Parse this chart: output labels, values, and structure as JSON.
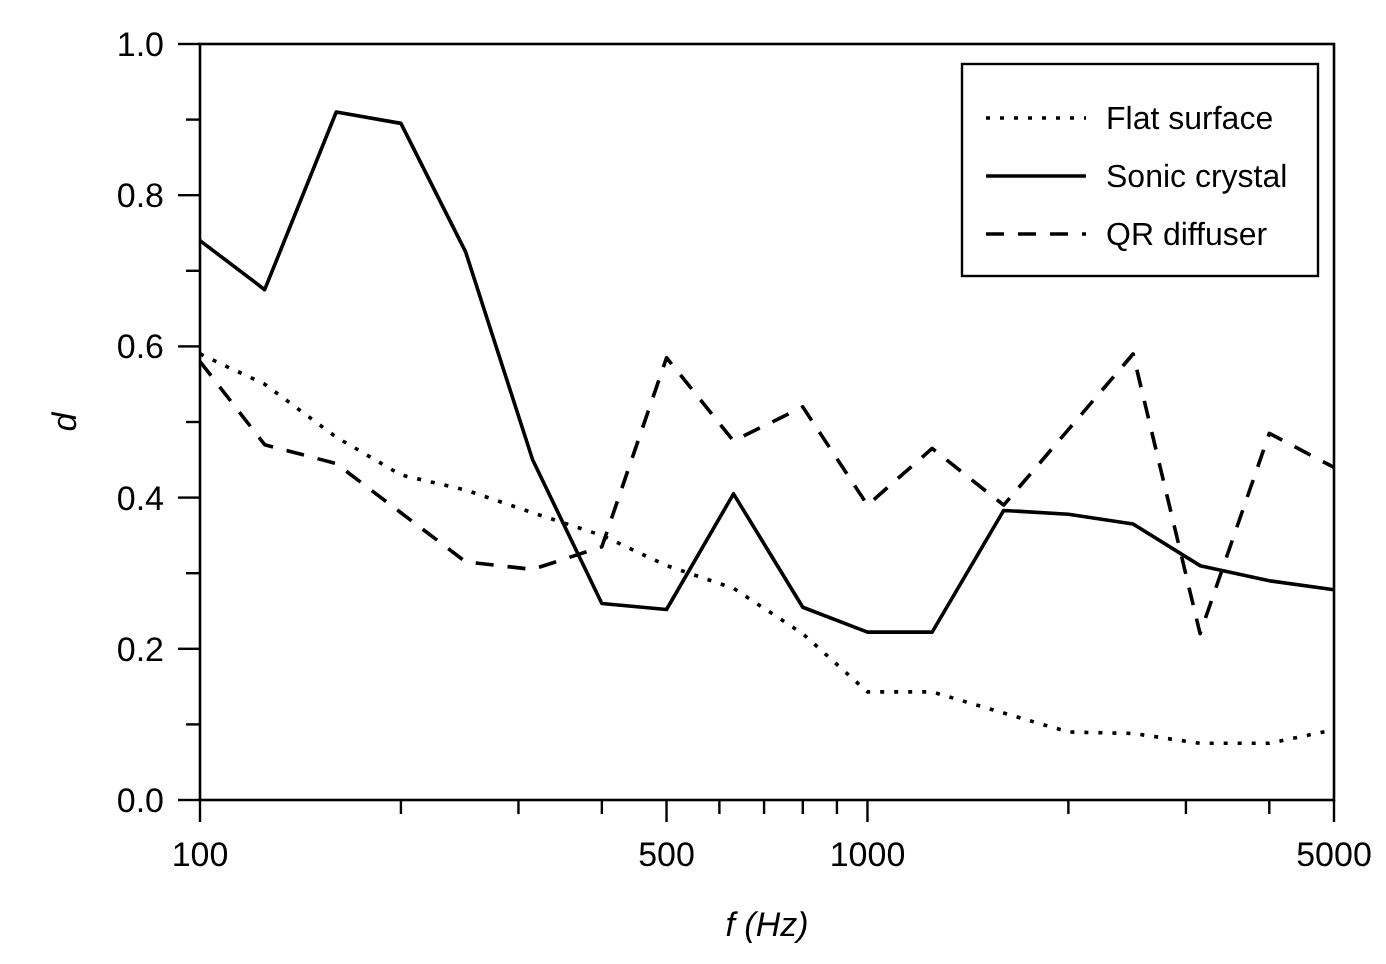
{
  "chart_data": {
    "type": "line",
    "xlabel": "f (Hz)",
    "ylabel": "d",
    "log": "x",
    "x": [
      100,
      125,
      160,
      200,
      250,
      315,
      400,
      500,
      630,
      800,
      1000,
      1250,
      1600,
      2000,
      2500,
      3150,
      4000,
      5000
    ],
    "series": [
      {
        "name": "Flat surface",
        "color": "#000000",
        "line_style": "dotted",
        "values": [
          0.59,
          0.55,
          0.48,
          0.43,
          0.41,
          0.38,
          0.35,
          0.31,
          0.28,
          0.22,
          0.143,
          0.143,
          0.115,
          0.09,
          0.088,
          0.075,
          0.075,
          0.093
        ]
      },
      {
        "name": "Sonic crystal",
        "color": "#000000",
        "line_style": "solid",
        "values": [
          0.74,
          0.675,
          0.91,
          0.895,
          0.725,
          0.45,
          0.26,
          0.252,
          0.405,
          0.255,
          0.222,
          0.222,
          0.383,
          0.378,
          0.365,
          0.31,
          0.29,
          0.278
        ]
      },
      {
        "name": "QR diffuser",
        "color": "#000000",
        "line_style": "dashed",
        "values": [
          0.58,
          0.47,
          0.445,
          0.38,
          0.315,
          0.305,
          0.335,
          0.585,
          0.475,
          0.52,
          0.39,
          0.465,
          0.39,
          0.49,
          0.59,
          0.22,
          0.485,
          0.44
        ]
      }
    ],
    "xlim": [
      100,
      5000
    ],
    "xticks": [
      100,
      {
        "value": 200,
        "label": null
      },
      {
        "value": 300,
        "label": null
      },
      {
        "value": 400,
        "label": null
      },
      500,
      {
        "value": 600,
        "label": null
      },
      {
        "value": 700,
        "label": null
      },
      {
        "value": 800,
        "label": null
      },
      {
        "value": 900,
        "label": null
      },
      1000,
      {
        "value": 2000,
        "label": null
      },
      {
        "value": 3000,
        "label": null
      },
      {
        "value": 4000,
        "label": null
      },
      5000
    ],
    "ylim": [
      0,
      1
    ],
    "yticks": [
      {
        "value": 0,
        "label": "0.0"
      },
      {
        "value": 0.1,
        "label": null
      },
      {
        "value": 0.2,
        "label": "0.2"
      },
      {
        "value": 0.3,
        "label": null
      },
      {
        "value": 0.4,
        "label": "0.4"
      },
      {
        "value": 0.5,
        "label": null
      },
      {
        "value": 0.6,
        "label": "0.6"
      },
      {
        "value": 0.7,
        "label": null
      },
      {
        "value": 0.8,
        "label": "0.8"
      },
      {
        "value": 0.9,
        "label": null
      },
      {
        "value": 1,
        "label": "1.0"
      }
    ],
    "grid": false,
    "legend": "top right"
  }
}
